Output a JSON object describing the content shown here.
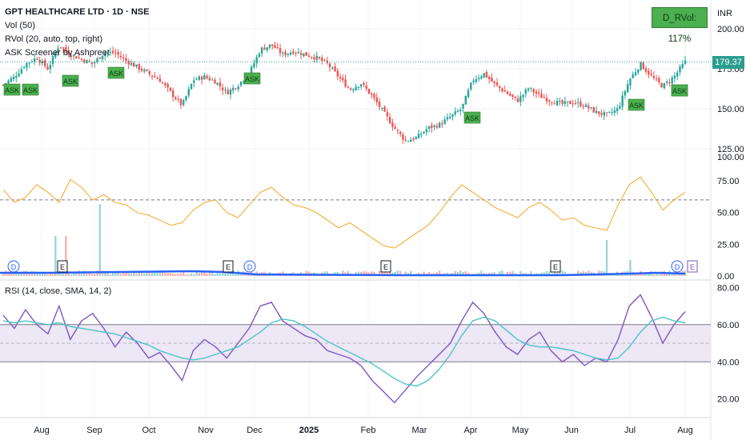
{
  "header": {
    "symbol_line": "GPT HEALTHCARE LTD · 1D · NSE",
    "indicator_vol": "Vol (50)",
    "indicator_rvol": "RVol (20, auto, top, right)",
    "indicator_ask": "ASK Screener by Ashpreet",
    "rvol_badge": "D_RVol: 117%",
    "currency": "INR",
    "last_price": "179.37",
    "rsi_title": "RSI (14, close, SMA, 14, 2)"
  },
  "colors": {
    "up": "#26a69a",
    "down": "#ef5350",
    "rvol_line": "#f5a623",
    "vol_ma": "#2962ff",
    "rsi_line": "#7e57c2",
    "rsi_ma": "#4dc3c8",
    "rsi_band": "#ede7f6",
    "ask_signal": "#4caf50"
  },
  "chart_data": [
    {
      "type": "candlestick",
      "title": "GPT HEALTHCARE LTD · 1D · NSE",
      "y_ticks": [
        125,
        150,
        175,
        200
      ],
      "ylim": [
        118,
        208
      ],
      "last_price": 179.37,
      "x_ticks": [
        "Aug",
        "Sep",
        "Oct",
        "Nov",
        "Dec",
        "2025",
        "Feb",
        "Mar",
        "Apr",
        "May",
        "Jun",
        "Jul",
        "Aug"
      ],
      "price_path": [
        [
          "Jul",
          165
        ],
        [
          "Jul",
          170
        ],
        [
          "Aug",
          178
        ],
        [
          "Aug",
          182
        ],
        [
          "Aug",
          175
        ],
        [
          "Aug",
          190
        ],
        [
          "Aug",
          184
        ],
        [
          "Sep",
          181
        ],
        [
          "Sep",
          178
        ],
        [
          "Sep",
          185
        ],
        [
          "Sep",
          185
        ],
        [
          "Sep",
          180
        ],
        [
          "Oct",
          176
        ],
        [
          "Oct",
          172
        ],
        [
          "Oct",
          168
        ],
        [
          "Oct",
          160
        ],
        [
          "Oct",
          152
        ],
        [
          "Nov",
          168
        ],
        [
          "Nov",
          170
        ],
        [
          "Nov",
          167
        ],
        [
          "Nov",
          160
        ],
        [
          "Nov",
          165
        ],
        [
          "Dec",
          172
        ],
        [
          "Dec",
          187
        ],
        [
          "Dec",
          190
        ],
        [
          "Dec",
          184
        ],
        [
          "Dec",
          186
        ],
        [
          "2025",
          184
        ],
        [
          "2025",
          182
        ],
        [
          "2025",
          178
        ],
        [
          "2025",
          170
        ],
        [
          "2025",
          162
        ],
        [
          "Feb",
          166
        ],
        [
          "Feb",
          158
        ],
        [
          "Feb",
          148
        ],
        [
          "Feb",
          138
        ],
        [
          "Mar",
          130
        ],
        [
          "Mar",
          132
        ],
        [
          "Mar",
          138
        ],
        [
          "Mar",
          140
        ],
        [
          "Mar",
          145
        ],
        [
          "Apr",
          150
        ],
        [
          "Apr",
          168
        ],
        [
          "Apr",
          172
        ],
        [
          "Apr",
          165
        ],
        [
          "Apr",
          160
        ],
        [
          "May",
          155
        ],
        [
          "May",
          163
        ],
        [
          "May",
          158
        ],
        [
          "May",
          155
        ],
        [
          "Jun",
          153
        ],
        [
          "Jun",
          154
        ],
        [
          "Jun",
          152
        ],
        [
          "Jun",
          148
        ],
        [
          "Jul",
          146
        ],
        [
          "Jul",
          150
        ],
        [
          "Jul",
          168
        ],
        [
          "Jul",
          178
        ],
        [
          "Jul",
          170
        ],
        [
          "Jul",
          164
        ],
        [
          "Aug",
          170
        ],
        [
          "Aug",
          179.37
        ]
      ],
      "signals": {
        "label": "ASK",
        "count": 9
      }
    },
    {
      "type": "line",
      "title": "RVol (20, auto, top, right)",
      "y_ticks": [
        0,
        25,
        50,
        75
      ],
      "ylim": [
        0,
        82
      ],
      "threshold": 60,
      "values": [
        68,
        58,
        62,
        72,
        66,
        58,
        76,
        70,
        60,
        64,
        58,
        56,
        50,
        48,
        44,
        40,
        42,
        52,
        58,
        60,
        50,
        46,
        56,
        66,
        70,
        62,
        56,
        54,
        50,
        44,
        38,
        42,
        36,
        30,
        24,
        22,
        28,
        34,
        40,
        50,
        62,
        72,
        66,
        60,
        54,
        50,
        46,
        54,
        58,
        52,
        44,
        46,
        40,
        38,
        36,
        56,
        72,
        78,
        66,
        52,
        60,
        66
      ],
      "volume_events": [
        "D",
        "E",
        "E",
        "D",
        "E",
        "E",
        "D",
        "E"
      ]
    },
    {
      "type": "line",
      "title": "RSI (14, close, SMA, 14, 2)",
      "y_ticks": [
        20,
        40,
        60,
        80
      ],
      "ylim": [
        13,
        84
      ],
      "band": [
        40,
        60
      ],
      "mid": 50,
      "series": [
        {
          "values": [
            65,
            58,
            68,
            60,
            55,
            70,
            52,
            62,
            66,
            58,
            48,
            56,
            50,
            42,
            45,
            38,
            30,
            46,
            52,
            48,
            42,
            50,
            58,
            70,
            72,
            62,
            58,
            54,
            52,
            46,
            44,
            42,
            38,
            30,
            24,
            18,
            25,
            32,
            38,
            44,
            50,
            62,
            72,
            66,
            56,
            48,
            44,
            52,
            56,
            46,
            40,
            44,
            38,
            42,
            40,
            52,
            70,
            76,
            64,
            50,
            60,
            67
          ]
        },
        {
          "values": [
            62,
            61,
            62,
            61,
            60,
            61,
            59,
            58,
            57,
            56,
            55,
            53,
            51,
            49,
            46,
            44,
            42,
            41,
            42,
            44,
            46,
            48,
            52,
            56,
            61,
            63,
            62,
            59,
            55,
            51,
            48,
            45,
            42,
            39,
            35,
            31,
            28,
            27,
            30,
            36,
            44,
            54,
            62,
            64,
            62,
            57,
            52,
            49,
            48,
            48,
            47,
            46,
            44,
            42,
            41,
            42,
            48,
            56,
            62,
            64,
            62,
            61
          ]
        }
      ]
    }
  ]
}
